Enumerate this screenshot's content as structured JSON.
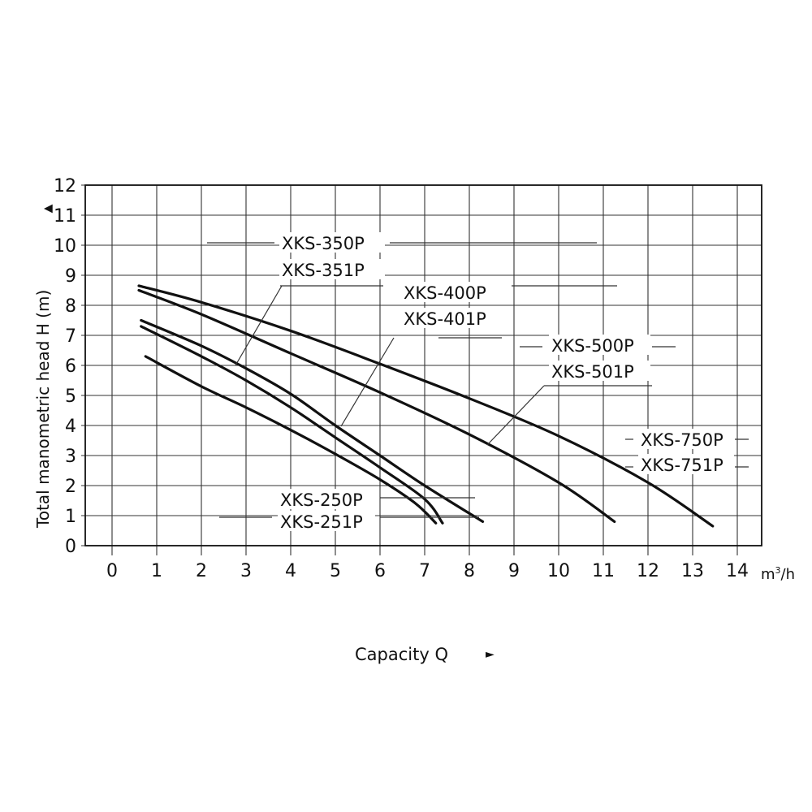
{
  "chart_data": {
    "type": "line",
    "title": "",
    "xlabel": "Capacity Q",
    "ylabel": "Total manometric head H (m)",
    "x_unit": "m³/h",
    "xlim": [
      0,
      14
    ],
    "ylim": [
      0,
      12
    ],
    "x_ticks": [
      "0",
      "1",
      "2",
      "3",
      "4",
      "5",
      "6",
      "7",
      "8",
      "9",
      "10",
      "11",
      "12",
      "13",
      "14"
    ],
    "y_ticks": [
      "0",
      "1",
      "2",
      "3",
      "4",
      "5",
      "6",
      "7",
      "8",
      "9",
      "10",
      "11",
      "12"
    ],
    "grid": true,
    "series": [
      {
        "name": "XKS-250P / XKS-251P",
        "points": [
          [
            0.75,
            6.3
          ],
          [
            2,
            5.3
          ],
          [
            3,
            4.6
          ],
          [
            4,
            3.85
          ],
          [
            5,
            3.05
          ],
          [
            6,
            2.2
          ],
          [
            6.8,
            1.4
          ],
          [
            7.25,
            0.75
          ]
        ]
      },
      {
        "name": "XKS-350P / XKS-351P",
        "points": [
          [
            0.65,
            7.3
          ],
          [
            2,
            6.3
          ],
          [
            3,
            5.5
          ],
          [
            4,
            4.6
          ],
          [
            5,
            3.6
          ],
          [
            6,
            2.6
          ],
          [
            7,
            1.55
          ],
          [
            7.4,
            0.75
          ]
        ]
      },
      {
        "name": "XKS-400P / XKS-401P",
        "points": [
          [
            0.65,
            7.5
          ],
          [
            2,
            6.65
          ],
          [
            3,
            5.9
          ],
          [
            4,
            5.05
          ],
          [
            5,
            4.0
          ],
          [
            6,
            3.0
          ],
          [
            7,
            2.0
          ],
          [
            8.3,
            0.8
          ]
        ]
      },
      {
        "name": "XKS-500P / XKS-501P",
        "points": [
          [
            0.6,
            8.5
          ],
          [
            2,
            7.7
          ],
          [
            4,
            6.4
          ],
          [
            6,
            5.1
          ],
          [
            8,
            3.7
          ],
          [
            10,
            2.1
          ],
          [
            11.25,
            0.8
          ]
        ]
      },
      {
        "name": "XKS-750P / XKS-751P",
        "points": [
          [
            0.6,
            8.65
          ],
          [
            2,
            8.1
          ],
          [
            4,
            7.15
          ],
          [
            6,
            6.05
          ],
          [
            8,
            4.9
          ],
          [
            10,
            3.65
          ],
          [
            12,
            2.1
          ],
          [
            13.45,
            0.65
          ]
        ]
      }
    ],
    "labels": [
      {
        "lines": [
          "XKS-250P",
          "XKS-251P"
        ]
      },
      {
        "lines": [
          "XKS-350P",
          "XKS-351P"
        ]
      },
      {
        "lines": [
          "XKS-400P",
          "XKS-401P"
        ]
      },
      {
        "lines": [
          "XKS-500P",
          "XKS-501P"
        ]
      },
      {
        "lines": [
          "XKS-750P",
          "XKS-751P"
        ]
      }
    ],
    "colors": {
      "line": "#111111",
      "grid": "#333333",
      "background": "#ffffff"
    }
  },
  "axis": {
    "y_title": "Total manometric head H (m)",
    "y_arrow": "▲",
    "x_title": "Capacity Q",
    "x_arrow": "►",
    "x_unit_base": "m",
    "x_unit_sup": "3",
    "x_unit_tail": "/h"
  }
}
